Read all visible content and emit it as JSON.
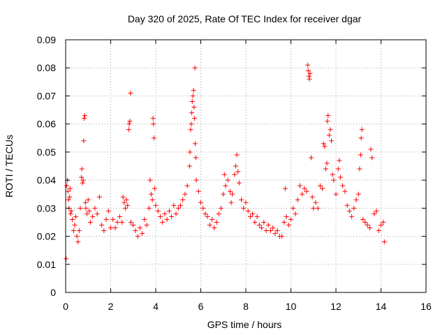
{
  "chart_data": {
    "type": "scatter",
    "title": "Day 320 of 2025, Rate Of TEC Index for receiver dgar",
    "xlabel": "GPS time / hours",
    "ylabel": "ROTI / TECUs",
    "xlim": [
      0,
      16
    ],
    "ylim": [
      0,
      0.09
    ],
    "xticks": [
      0,
      2,
      4,
      6,
      8,
      10,
      12,
      14,
      16
    ],
    "xtick_labels": [
      "0",
      "2",
      "4",
      "6",
      "8",
      "10",
      "12",
      "14",
      "16"
    ],
    "yticks": [
      0,
      0.01,
      0.02,
      0.03,
      0.04,
      0.05,
      0.06,
      0.07,
      0.08,
      0.09
    ],
    "ytick_labels": [
      "0",
      "0.01",
      "0.02",
      "0.03",
      "0.04",
      "0.05",
      "0.06",
      "0.07",
      "0.08",
      "0.09"
    ],
    "grid": true,
    "marker": "+",
    "color": "#ff0000",
    "series": [
      {
        "name": "ROTI",
        "points": [
          [
            0.02,
            0.012
          ],
          [
            0.05,
            0.038
          ],
          [
            0.08,
            0.04
          ],
          [
            0.1,
            0.036
          ],
          [
            0.12,
            0.033
          ],
          [
            0.15,
            0.03
          ],
          [
            0.18,
            0.034
          ],
          [
            0.2,
            0.037
          ],
          [
            0.22,
            0.028
          ],
          [
            0.25,
            0.029
          ],
          [
            0.3,
            0.026
          ],
          [
            0.35,
            0.022
          ],
          [
            0.4,
            0.024
          ],
          [
            0.45,
            0.027
          ],
          [
            0.5,
            0.02
          ],
          [
            0.55,
            0.018
          ],
          [
            0.6,
            0.022
          ],
          [
            0.65,
            0.03
          ],
          [
            0.7,
            0.041
          ],
          [
            0.72,
            0.044
          ],
          [
            0.75,
            0.039
          ],
          [
            0.78,
            0.04
          ],
          [
            0.8,
            0.054
          ],
          [
            0.82,
            0.062
          ],
          [
            0.85,
            0.063
          ],
          [
            0.88,
            0.032
          ],
          [
            0.9,
            0.03
          ],
          [
            0.95,
            0.028
          ],
          [
            1.0,
            0.033
          ],
          [
            1.05,
            0.029
          ],
          [
            1.1,
            0.025
          ],
          [
            1.2,
            0.027
          ],
          [
            1.3,
            0.03
          ],
          [
            1.4,
            0.028
          ],
          [
            1.5,
            0.034
          ],
          [
            1.6,
            0.024
          ],
          [
            1.7,
            0.022
          ],
          [
            1.8,
            0.026
          ],
          [
            1.9,
            0.029
          ],
          [
            2.0,
            0.023
          ],
          [
            2.1,
            0.026
          ],
          [
            2.2,
            0.023
          ],
          [
            2.3,
            0.025
          ],
          [
            2.4,
            0.027
          ],
          [
            2.5,
            0.025
          ],
          [
            2.55,
            0.034
          ],
          [
            2.6,
            0.032
          ],
          [
            2.65,
            0.03
          ],
          [
            2.7,
            0.033
          ],
          [
            2.75,
            0.031
          ],
          [
            2.8,
            0.058
          ],
          [
            2.82,
            0.06
          ],
          [
            2.85,
            0.061
          ],
          [
            2.88,
            0.071
          ],
          [
            2.9,
            0.025
          ],
          [
            3.0,
            0.024
          ],
          [
            3.1,
            0.022
          ],
          [
            3.2,
            0.02
          ],
          [
            3.3,
            0.023
          ],
          [
            3.4,
            0.021
          ],
          [
            3.5,
            0.026
          ],
          [
            3.6,
            0.024
          ],
          [
            3.7,
            0.03
          ],
          [
            3.75,
            0.04
          ],
          [
            3.8,
            0.035
          ],
          [
            3.85,
            0.033
          ],
          [
            3.88,
            0.062
          ],
          [
            3.9,
            0.06
          ],
          [
            3.92,
            0.055
          ],
          [
            3.95,
            0.037
          ],
          [
            4.0,
            0.031
          ],
          [
            4.1,
            0.029
          ],
          [
            4.2,
            0.027
          ],
          [
            4.3,
            0.025
          ],
          [
            4.4,
            0.028
          ],
          [
            4.5,
            0.026
          ],
          [
            4.6,
            0.029
          ],
          [
            4.7,
            0.027
          ],
          [
            4.8,
            0.031
          ],
          [
            4.9,
            0.028
          ],
          [
            5.0,
            0.03
          ],
          [
            5.1,
            0.031
          ],
          [
            5.2,
            0.033
          ],
          [
            5.3,
            0.035
          ],
          [
            5.4,
            0.038
          ],
          [
            5.5,
            0.045
          ],
          [
            5.52,
            0.05
          ],
          [
            5.55,
            0.058
          ],
          [
            5.58,
            0.06
          ],
          [
            5.6,
            0.064
          ],
          [
            5.62,
            0.068
          ],
          [
            5.65,
            0.07
          ],
          [
            5.68,
            0.072
          ],
          [
            5.7,
            0.066
          ],
          [
            5.72,
            0.062
          ],
          [
            5.74,
            0.08
          ],
          [
            5.75,
            0.053
          ],
          [
            5.78,
            0.048
          ],
          [
            5.8,
            0.04
          ],
          [
            5.9,
            0.036
          ],
          [
            6.0,
            0.032
          ],
          [
            6.1,
            0.03
          ],
          [
            6.2,
            0.028
          ],
          [
            6.3,
            0.027
          ],
          [
            6.4,
            0.024
          ],
          [
            6.5,
            0.026
          ],
          [
            6.6,
            0.023
          ],
          [
            6.7,
            0.025
          ],
          [
            6.8,
            0.028
          ],
          [
            6.9,
            0.03
          ],
          [
            7.0,
            0.035
          ],
          [
            7.05,
            0.042
          ],
          [
            7.1,
            0.038
          ],
          [
            7.2,
            0.04
          ],
          [
            7.3,
            0.036
          ],
          [
            7.35,
            0.032
          ],
          [
            7.4,
            0.035
          ],
          [
            7.5,
            0.042
          ],
          [
            7.55,
            0.045
          ],
          [
            7.6,
            0.049
          ],
          [
            7.65,
            0.043
          ],
          [
            7.7,
            0.039
          ],
          [
            7.8,
            0.033
          ],
          [
            7.9,
            0.03
          ],
          [
            8.0,
            0.032
          ],
          [
            8.1,
            0.029
          ],
          [
            8.2,
            0.027
          ],
          [
            8.3,
            0.028
          ],
          [
            8.4,
            0.025
          ],
          [
            8.5,
            0.027
          ],
          [
            8.6,
            0.024
          ],
          [
            8.7,
            0.023
          ],
          [
            8.8,
            0.025
          ],
          [
            8.9,
            0.022
          ],
          [
            9.0,
            0.024
          ],
          [
            9.1,
            0.022
          ],
          [
            9.2,
            0.023
          ],
          [
            9.3,
            0.021
          ],
          [
            9.4,
            0.022
          ],
          [
            9.5,
            0.02
          ],
          [
            9.6,
            0.02
          ],
          [
            9.7,
            0.025
          ],
          [
            9.75,
            0.037
          ],
          [
            9.8,
            0.027
          ],
          [
            9.9,
            0.024
          ],
          [
            10.0,
            0.026
          ],
          [
            10.1,
            0.03
          ],
          [
            10.2,
            0.028
          ],
          [
            10.3,
            0.033
          ],
          [
            10.4,
            0.038
          ],
          [
            10.5,
            0.035
          ],
          [
            10.6,
            0.037
          ],
          [
            10.7,
            0.036
          ],
          [
            10.75,
            0.081
          ],
          [
            10.77,
            0.079
          ],
          [
            10.8,
            0.077
          ],
          [
            10.82,
            0.076
          ],
          [
            10.85,
            0.078
          ],
          [
            10.9,
            0.048
          ],
          [
            10.95,
            0.034
          ],
          [
            11.0,
            0.03
          ],
          [
            11.1,
            0.032
          ],
          [
            11.2,
            0.03
          ],
          [
            11.3,
            0.038
          ],
          [
            11.4,
            0.037
          ],
          [
            11.45,
            0.053
          ],
          [
            11.5,
            0.052
          ],
          [
            11.55,
            0.044
          ],
          [
            11.6,
            0.046
          ],
          [
            11.62,
            0.061
          ],
          [
            11.65,
            0.063
          ],
          [
            11.7,
            0.056
          ],
          [
            11.75,
            0.058
          ],
          [
            11.8,
            0.054
          ],
          [
            11.85,
            0.042
          ],
          [
            11.9,
            0.04
          ],
          [
            12.0,
            0.035
          ],
          [
            12.1,
            0.044
          ],
          [
            12.15,
            0.047
          ],
          [
            12.2,
            0.041
          ],
          [
            12.3,
            0.038
          ],
          [
            12.4,
            0.036
          ],
          [
            12.5,
            0.031
          ],
          [
            12.6,
            0.029
          ],
          [
            12.7,
            0.027
          ],
          [
            12.8,
            0.03
          ],
          [
            12.9,
            0.033
          ],
          [
            13.0,
            0.035
          ],
          [
            13.05,
            0.044
          ],
          [
            13.1,
            0.049
          ],
          [
            13.12,
            0.055
          ],
          [
            13.15,
            0.058
          ],
          [
            13.2,
            0.026
          ],
          [
            13.3,
            0.025
          ],
          [
            13.4,
            0.024
          ],
          [
            13.5,
            0.023
          ],
          [
            13.55,
            0.051
          ],
          [
            13.6,
            0.048
          ],
          [
            13.7,
            0.028
          ],
          [
            13.8,
            0.029
          ],
          [
            13.9,
            0.022
          ],
          [
            14.0,
            0.024
          ],
          [
            14.1,
            0.025
          ],
          [
            14.15,
            0.018
          ]
        ]
      }
    ]
  }
}
